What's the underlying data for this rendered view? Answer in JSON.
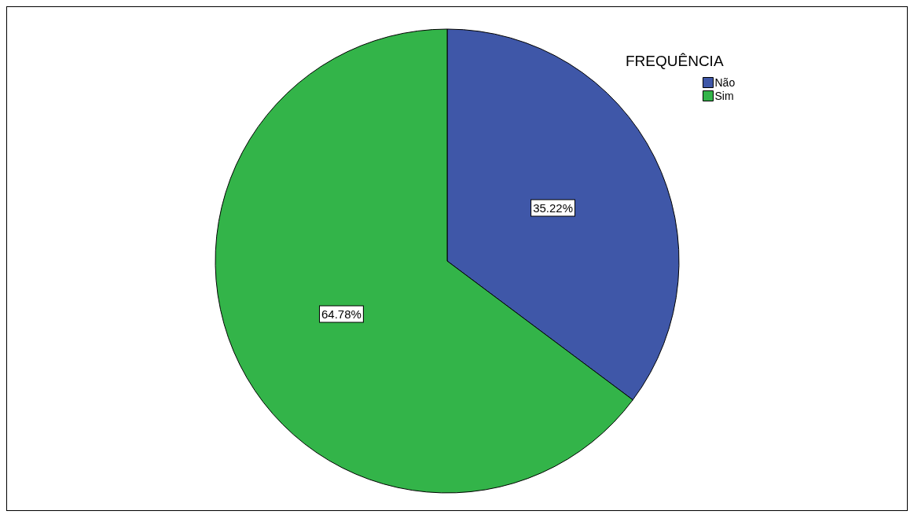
{
  "chart_data": {
    "type": "pie",
    "legend_title": "FREQUÊNCIA",
    "categories": [
      "Não",
      "Sim"
    ],
    "values": [
      35.22,
      64.78
    ],
    "colors": [
      "#3f57a8",
      "#33b449"
    ],
    "value_labels": [
      "35.22%",
      "64.78%"
    ],
    "legend": "top right"
  }
}
